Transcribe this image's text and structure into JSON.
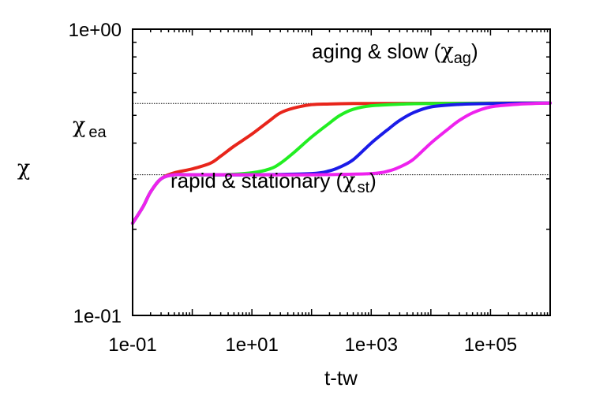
{
  "chart_data": {
    "type": "line",
    "xscale": "log",
    "yscale": "log",
    "xlim": [
      0.1,
      1000000
    ],
    "ylim": [
      0.1,
      1.0
    ],
    "xlabel": "t-tw",
    "ylabel": "χ",
    "x_ticks": [
      {
        "value": 0.1,
        "label": "1e-01"
      },
      {
        "value": 10,
        "label": "1e+01"
      },
      {
        "value": 1000,
        "label": "1e+03"
      },
      {
        "value": 100000,
        "label": "1e+05"
      }
    ],
    "y_ticks": [
      {
        "value": 0.1,
        "label": "1e-01"
      },
      {
        "value": 1.0,
        "label": "1e+00"
      }
    ],
    "y_side_label": {
      "value": 0.34,
      "symbol": "χ",
      "subscript": "ea"
    },
    "reference_lines": [
      {
        "y": 0.55,
        "style": "dotted"
      },
      {
        "y": 0.31,
        "style": "dotted"
      }
    ],
    "annotations": [
      {
        "prefix": "aging & slow (",
        "symbol": "χ",
        "subscript": "ag",
        "suffix": ")"
      },
      {
        "prefix": "rapid & stationary (",
        "symbol": "χ",
        "subscript": "st",
        "suffix": ")"
      }
    ],
    "series": [
      {
        "color": "#e8251b",
        "x": [
          0.1,
          0.15,
          0.2,
          0.3,
          0.5,
          1,
          2,
          3,
          5,
          10,
          20,
          30,
          50,
          100,
          200,
          500,
          1000,
          10000,
          1000000
        ],
        "y": [
          0.21,
          0.24,
          0.27,
          0.3,
          0.315,
          0.325,
          0.34,
          0.36,
          0.39,
          0.43,
          0.48,
          0.51,
          0.53,
          0.545,
          0.548,
          0.55,
          0.55,
          0.551,
          0.552
        ]
      },
      {
        "color": "#22ee22",
        "x": [
          0.1,
          0.15,
          0.2,
          0.3,
          0.5,
          1,
          3,
          10,
          20,
          30,
          50,
          100,
          200,
          300,
          500,
          1000,
          3000,
          10000,
          1000000
        ],
        "y": [
          0.21,
          0.24,
          0.27,
          0.3,
          0.31,
          0.31,
          0.31,
          0.315,
          0.325,
          0.34,
          0.37,
          0.42,
          0.47,
          0.5,
          0.525,
          0.54,
          0.547,
          0.55,
          0.552
        ]
      },
      {
        "color": "#1b1be8",
        "x": [
          0.1,
          0.15,
          0.2,
          0.3,
          0.5,
          1,
          10,
          100,
          200,
          300,
          500,
          1000,
          2000,
          3000,
          5000,
          10000,
          30000,
          100000,
          1000000
        ],
        "y": [
          0.21,
          0.24,
          0.27,
          0.3,
          0.31,
          0.31,
          0.31,
          0.313,
          0.32,
          0.33,
          0.35,
          0.4,
          0.45,
          0.48,
          0.51,
          0.535,
          0.546,
          0.55,
          0.552
        ]
      },
      {
        "color": "#ee22ee",
        "x": [
          0.1,
          0.15,
          0.2,
          0.3,
          0.5,
          1,
          10,
          100,
          1000,
          2000,
          3000,
          5000,
          10000,
          20000,
          30000,
          50000,
          100000,
          300000,
          1000000
        ],
        "y": [
          0.21,
          0.24,
          0.27,
          0.3,
          0.31,
          0.31,
          0.31,
          0.31,
          0.313,
          0.32,
          0.33,
          0.35,
          0.4,
          0.45,
          0.48,
          0.51,
          0.535,
          0.547,
          0.552
        ]
      }
    ]
  }
}
